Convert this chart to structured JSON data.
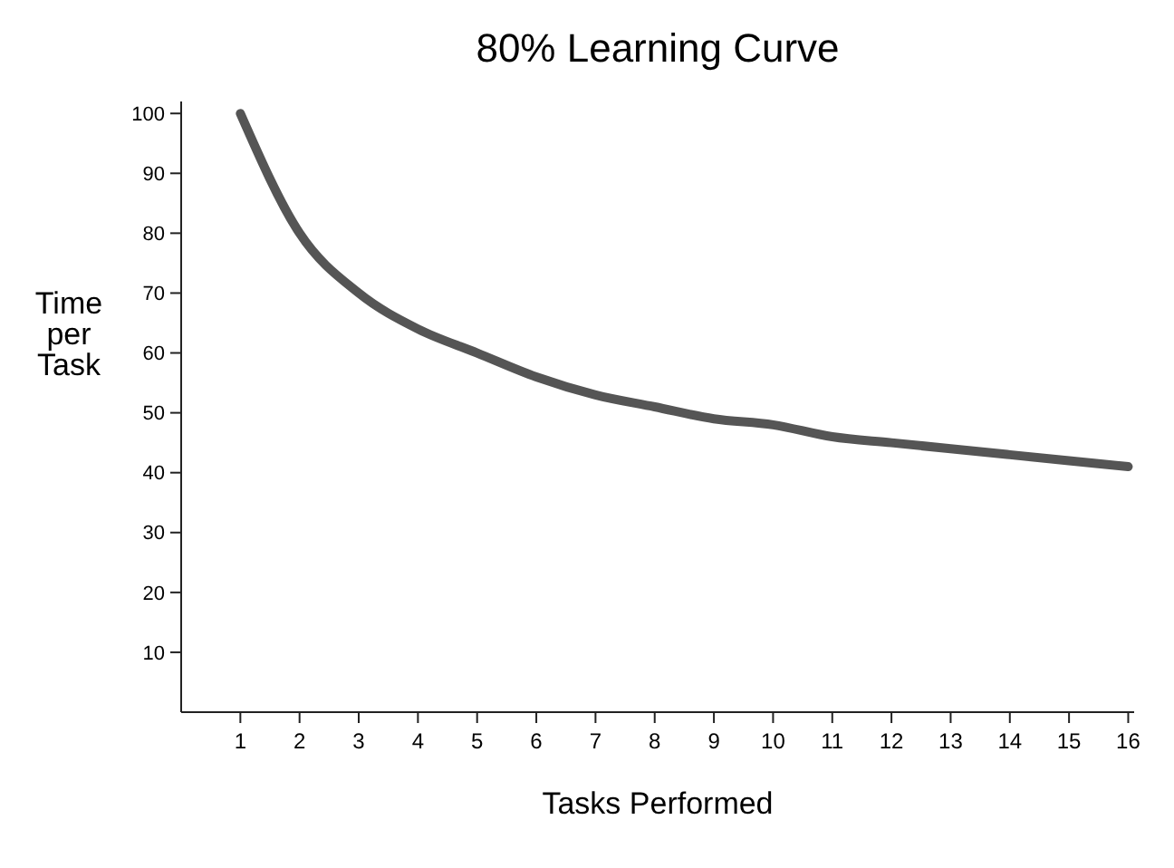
{
  "chart_data": {
    "type": "line",
    "title": "80% Learning Curve",
    "xlabel": "Tasks Performed",
    "ylabel": "Time per Task",
    "x": [
      1,
      2,
      3,
      4,
      5,
      6,
      7,
      8,
      9,
      10,
      11,
      12,
      13,
      14,
      15,
      16
    ],
    "series": [
      {
        "color": "#555555",
        "values": [
          100,
          80,
          70,
          64,
          60,
          56,
          53,
          51,
          49,
          48,
          46,
          45,
          44,
          43,
          42,
          41
        ]
      }
    ],
    "xlim": [
      0,
      16.1
    ],
    "xticks": [
      1,
      2,
      3,
      4,
      5,
      6,
      7,
      8,
      9,
      10,
      11,
      12,
      13,
      14,
      15,
      16
    ],
    "ylim": [
      0,
      102
    ],
    "yticks": [
      10,
      20,
      30,
      40,
      50,
      60,
      70,
      80,
      90,
      100
    ]
  }
}
